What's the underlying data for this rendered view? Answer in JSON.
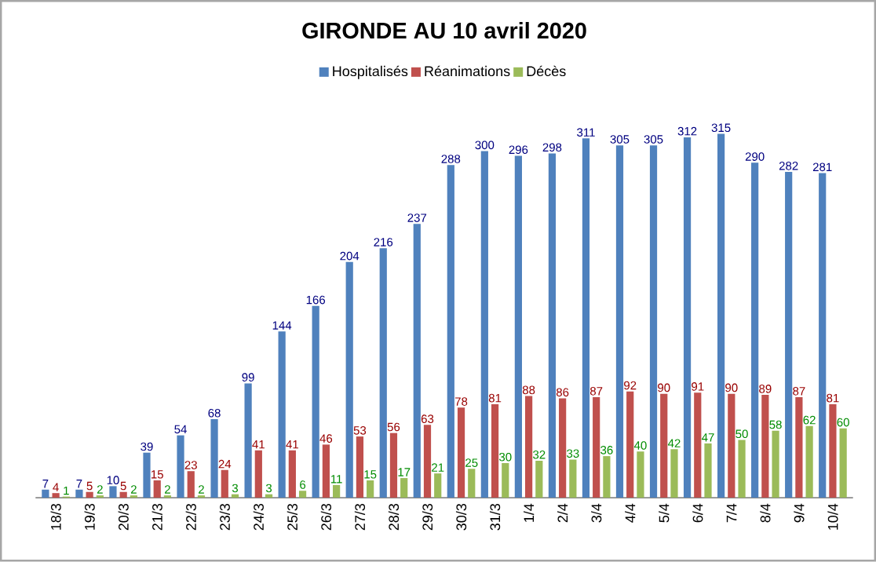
{
  "chart_data": {
    "type": "bar",
    "title": "GIRONDE AU 10 avril 2020",
    "categories": [
      "18/3",
      "19/3",
      "20/3",
      "21/3",
      "22/3",
      "23/3",
      "24/3",
      "25/3",
      "26/3",
      "27/3",
      "28/3",
      "29/3",
      "30/3",
      "31/3",
      "1/4",
      "2/4",
      "3/4",
      "4/4",
      "5/4",
      "6/4",
      "7/4",
      "8/4",
      "9/4",
      "10/4"
    ],
    "series": [
      {
        "name": "Hospitalisés",
        "color": "#4f81bd",
        "values": [
          7,
          7,
          10,
          39,
          54,
          68,
          99,
          144,
          166,
          204,
          216,
          237,
          288,
          300,
          296,
          298,
          311,
          305,
          305,
          312,
          315,
          290,
          282,
          281
        ]
      },
      {
        "name": "Réanimations",
        "color": "#c0504d",
        "values": [
          4,
          5,
          5,
          15,
          23,
          24,
          41,
          41,
          46,
          53,
          56,
          63,
          78,
          81,
          88,
          86,
          87,
          92,
          90,
          91,
          90,
          89,
          87,
          81
        ]
      },
      {
        "name": "Décès",
        "color": "#9bbb59",
        "values": [
          1,
          2,
          2,
          2,
          2,
          3,
          3,
          6,
          11,
          15,
          17,
          21,
          25,
          30,
          32,
          33,
          36,
          40,
          42,
          47,
          50,
          58,
          62,
          60
        ]
      }
    ],
    "data_labels": true,
    "legend": "top"
  }
}
